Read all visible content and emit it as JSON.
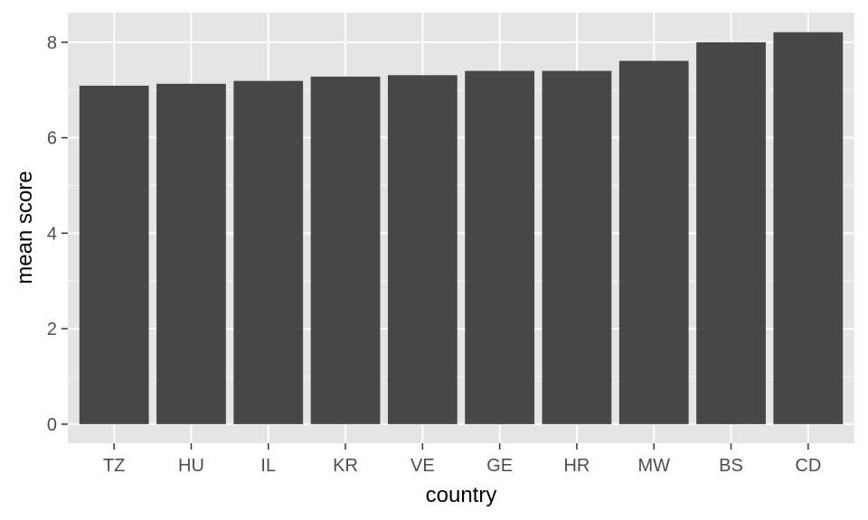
{
  "chart_data": {
    "type": "bar",
    "title": "",
    "xlabel": "country",
    "ylabel": "mean score",
    "categories": [
      "TZ",
      "HU",
      "IL",
      "KR",
      "VE",
      "GE",
      "HR",
      "MW",
      "BS",
      "CD"
    ],
    "values": [
      7.09,
      7.13,
      7.19,
      7.28,
      7.31,
      7.4,
      7.4,
      7.61,
      8.0,
      8.21
    ],
    "ylim": [
      -0.4,
      8.62
    ],
    "yticks": [
      0,
      2,
      4,
      6,
      8
    ],
    "grid": true,
    "colors": {
      "panel": "#e5e5e5",
      "grid": "#ffffff",
      "bar": "#474747",
      "tick_text": "#4d4d4d",
      "axis_title": "#000000"
    }
  }
}
